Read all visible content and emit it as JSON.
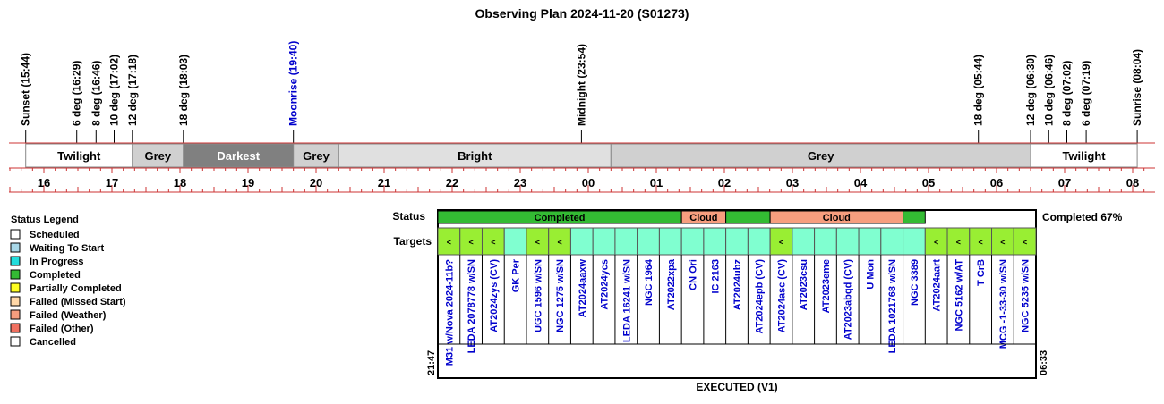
{
  "title": "Observing Plan 2024-11-20 (S01273)",
  "events": [
    {
      "label": "Sunset (15:44)",
      "t": 15.733,
      "color": "#000000"
    },
    {
      "label": "6 deg (16:29)",
      "t": 16.483,
      "color": "#000000"
    },
    {
      "label": "8 deg (16:46)",
      "t": 16.767,
      "color": "#000000"
    },
    {
      "label": "10 deg (17:02)",
      "t": 17.033,
      "color": "#000000"
    },
    {
      "label": "12 deg (17:18)",
      "t": 17.3,
      "color": "#000000"
    },
    {
      "label": "18 deg (18:03)",
      "t": 18.05,
      "color": "#000000"
    },
    {
      "label": "Moonrise (19:40)",
      "t": 19.667,
      "color": "#0000cc"
    },
    {
      "label": "Midnight (23:54)",
      "t": 23.9,
      "color": "#000000"
    },
    {
      "label": "18 deg (05:44)",
      "t": 29.733,
      "color": "#000000"
    },
    {
      "label": "12 deg (06:30)",
      "t": 30.5,
      "color": "#000000"
    },
    {
      "label": "10 deg (06:46)",
      "t": 30.767,
      "color": "#000000"
    },
    {
      "label": "8 deg (07:02)",
      "t": 31.033,
      "color": "#000000"
    },
    {
      "label": "6 deg (07:19)",
      "t": 31.317,
      "color": "#000000"
    },
    {
      "label": "Sunrise (08:04)",
      "t": 32.067,
      "color": "#000000"
    }
  ],
  "bands": [
    {
      "label": "Twilight",
      "start": 15.733,
      "end": 17.3,
      "fill": "#ffffff",
      "text": "#000000"
    },
    {
      "label": "Grey",
      "start": 17.3,
      "end": 18.05,
      "fill": "#d0d0d0",
      "text": "#000000"
    },
    {
      "label": "Darkest",
      "start": 18.05,
      "end": 19.667,
      "fill": "#808080",
      "text": "#ffffff"
    },
    {
      "label": "Grey",
      "start": 19.667,
      "end": 20.333,
      "fill": "#d0d0d0",
      "text": "#000000"
    },
    {
      "label": "Bright",
      "start": 20.333,
      "end": 24.333,
      "fill": "#e0e0e0",
      "text": "#000000"
    },
    {
      "label": "Grey",
      "start": 24.333,
      "end": 30.5,
      "fill": "#d0d0d0",
      "text": "#000000"
    },
    {
      "label": "Twilight",
      "start": 30.5,
      "end": 32.067,
      "fill": "#ffffff",
      "text": "#000000"
    }
  ],
  "hours": [
    "16",
    "17",
    "18",
    "19",
    "20",
    "21",
    "22",
    "23",
    "00",
    "01",
    "02",
    "03",
    "04",
    "05",
    "06",
    "07",
    "08"
  ],
  "status_label": "Status",
  "targets_label": "Targets",
  "status_segments": [
    {
      "label": "Completed",
      "start": 0,
      "end": 11,
      "fill": "#33bb33"
    },
    {
      "label": "Cloud",
      "start": 11,
      "end": 13,
      "fill": "#f79e7e"
    },
    {
      "label": "",
      "start": 13,
      "end": 15,
      "fill": "#33bb33"
    },
    {
      "label": "Cloud",
      "start": 15,
      "end": 21,
      "fill": "#f79e7e"
    },
    {
      "label": "",
      "start": 21,
      "end": 22,
      "fill": "#33bb33"
    }
  ],
  "completed_text": "Completed 67%",
  "targets": [
    {
      "name": "M31 w/Nova 2024-11b?",
      "mark": "<",
      "fill": "#99ee33"
    },
    {
      "name": "LEDA 2078778 w/SN",
      "mark": "<",
      "fill": "#99ee33"
    },
    {
      "name": "AT2024zys (CV)",
      "mark": "<",
      "fill": "#99ee33"
    },
    {
      "name": "GK Per",
      "mark": "",
      "fill": "#80ffd0"
    },
    {
      "name": "UGC 1596 w/SN",
      "mark": "<",
      "fill": "#99ee33"
    },
    {
      "name": "NGC 1275 w/SN",
      "mark": "<",
      "fill": "#99ee33"
    },
    {
      "name": "AT2024aaxw",
      "mark": "",
      "fill": "#80ffd0"
    },
    {
      "name": "AT2024ycs",
      "mark": "",
      "fill": "#80ffd0"
    },
    {
      "name": "LEDA 16241 w/SN",
      "mark": "",
      "fill": "#80ffd0"
    },
    {
      "name": "NGC 1964",
      "mark": "",
      "fill": "#80ffd0"
    },
    {
      "name": "AT2022xpa",
      "mark": "",
      "fill": "#80ffd0"
    },
    {
      "name": "CN Ori",
      "mark": "",
      "fill": "#80ffd0"
    },
    {
      "name": "IC 2163",
      "mark": "",
      "fill": "#80ffd0"
    },
    {
      "name": "AT2024ubz",
      "mark": "",
      "fill": "#80ffd0"
    },
    {
      "name": "AT2024epb (CV)",
      "mark": "",
      "fill": "#80ffd0"
    },
    {
      "name": "AT2024asc (CV)",
      "mark": "<",
      "fill": "#99ee33"
    },
    {
      "name": "AT2023csu",
      "mark": "",
      "fill": "#80ffd0"
    },
    {
      "name": "AT2023eme",
      "mark": "",
      "fill": "#80ffd0"
    },
    {
      "name": "AT2023abqd (CV)",
      "mark": "",
      "fill": "#80ffd0"
    },
    {
      "name": "U Mon",
      "mark": "",
      "fill": "#80ffd0"
    },
    {
      "name": "LEDA 1021768 w/SN",
      "mark": "",
      "fill": "#80ffd0"
    },
    {
      "name": "NGC 3389",
      "mark": "",
      "fill": "#80ffd0"
    },
    {
      "name": "AT2024aart",
      "mark": "<",
      "fill": "#99ee33"
    },
    {
      "name": "NGC 5162 w/AT",
      "mark": "<",
      "fill": "#99ee33"
    },
    {
      "name": "T CrB",
      "mark": "<",
      "fill": "#99ee33"
    },
    {
      "name": "MCG -1-33-30 w/SN",
      "mark": "<",
      "fill": "#99ee33"
    },
    {
      "name": "NGC 5235 w/SN",
      "mark": "<",
      "fill": "#99ee33"
    }
  ],
  "start_time": "21:47",
  "end_time": "06:33",
  "footer": "EXECUTED (V1)",
  "legend": {
    "title": "Status Legend",
    "items": [
      {
        "label": "Scheduled",
        "color": "#ffffff"
      },
      {
        "label": "Waiting To Start",
        "color": "#a8d8e8"
      },
      {
        "label": "In Progress",
        "color": "#22dddd"
      },
      {
        "label": "Completed",
        "color": "#33bb33"
      },
      {
        "label": "Partially Completed",
        "color": "#ffff22"
      },
      {
        "label": "Failed (Missed Start)",
        "color": "#ffd8a8"
      },
      {
        "label": "Failed (Weather)",
        "color": "#f79e7e"
      },
      {
        "label": "Failed (Other)",
        "color": "#f07060"
      },
      {
        "label": "Cancelled",
        "color": "#ffffff"
      }
    ]
  },
  "chart_data": {
    "type": "timeline",
    "title": "Observing Plan 2024-11-20 (S01273)",
    "x_unit": "hour of night (local time)",
    "xlim": [
      "15:20",
      "08:15"
    ],
    "events": [
      {
        "label": "Sunset",
        "time": "15:44"
      },
      {
        "label": "6 deg",
        "time": "16:29"
      },
      {
        "label": "8 deg",
        "time": "16:46"
      },
      {
        "label": "10 deg",
        "time": "17:02"
      },
      {
        "label": "12 deg",
        "time": "17:18"
      },
      {
        "label": "18 deg",
        "time": "18:03"
      },
      {
        "label": "Moonrise",
        "time": "19:40"
      },
      {
        "label": "Midnight",
        "time": "23:54"
      },
      {
        "label": "18 deg",
        "time": "05:44"
      },
      {
        "label": "12 deg",
        "time": "06:30"
      },
      {
        "label": "10 deg",
        "time": "06:46"
      },
      {
        "label": "8 deg",
        "time": "07:02"
      },
      {
        "label": "6 deg",
        "time": "07:19"
      },
      {
        "label": "Sunrise",
        "time": "08:04"
      }
    ],
    "sky_bands": [
      "Twilight",
      "Grey",
      "Darkest",
      "Grey",
      "Bright",
      "Grey",
      "Twilight"
    ],
    "execution_window": [
      "21:47",
      "06:33"
    ],
    "completed_percent": 67
  }
}
